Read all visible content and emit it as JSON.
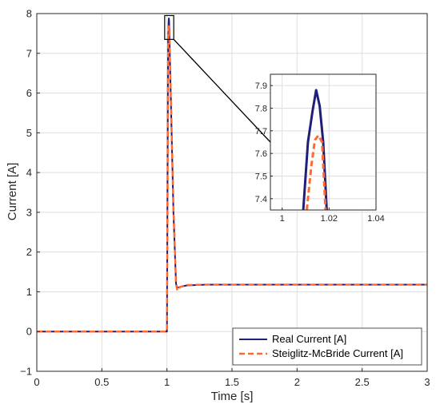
{
  "colors": {
    "real": "#1f1f7a",
    "sm": "#ff6a33",
    "axis": "#262626",
    "grid": "#dedede",
    "zoom_box": "#000000"
  },
  "chart_data": {
    "type": "line",
    "title": "",
    "xlabel": "Time [s]",
    "ylabel": "Current [A]",
    "xlim": [
      0,
      3
    ],
    "ylim": [
      -1,
      8
    ],
    "xticks": [
      0,
      0.5,
      1,
      1.5,
      2,
      2.5,
      3
    ],
    "xtick_labels": [
      "0",
      "0.5",
      "1",
      "1.5",
      "2",
      "2.5",
      "3"
    ],
    "yticks": [
      -1,
      0,
      1,
      2,
      3,
      4,
      5,
      6,
      7,
      8
    ],
    "ytick_labels": [
      "−1",
      "0",
      "1",
      "2",
      "3",
      "4",
      "5",
      "6",
      "7",
      "8"
    ],
    "grid": true,
    "legend_position": "bottom-right",
    "series": [
      {
        "name": "Real Current [A]",
        "line_style": "solid",
        "x": [
          0,
          0.5,
          1.0,
          1.009,
          1.013,
          1.015,
          1.017,
          1.02,
          1.05,
          1.07,
          1.08,
          1.1,
          1.15,
          1.3,
          2.0,
          3.0
        ],
        "y": [
          0,
          0,
          0,
          7.3,
          7.8,
          7.88,
          7.8,
          7.3,
          3.0,
          1.2,
          1.1,
          1.12,
          1.16,
          1.18,
          1.18,
          1.18
        ]
      },
      {
        "name": "Steiglitz-McBride Current [A]",
        "line_style": "dashed",
        "x": [
          0,
          0.5,
          1.0,
          1.01,
          1.013,
          1.015,
          1.018,
          1.02,
          1.05,
          1.07,
          1.08,
          1.1,
          1.15,
          1.3,
          2.0,
          3.0
        ],
        "y": [
          0,
          0,
          0,
          7.3,
          7.6,
          7.68,
          7.66,
          7.3,
          3.1,
          1.2,
          1.03,
          1.12,
          1.17,
          1.18,
          1.18,
          1.18
        ]
      }
    ],
    "inset": {
      "xlim": [
        0.995,
        1.04
      ],
      "ylim": [
        7.35,
        7.95
      ],
      "xticks": [
        1,
        1.02,
        1.04
      ],
      "xtick_labels": [
        "1",
        "1.02",
        "1.04"
      ],
      "yticks": [
        7.4,
        7.5,
        7.6,
        7.7,
        7.8,
        7.9
      ],
      "ytick_labels": [
        "7.4",
        "7.5",
        "7.6",
        "7.7",
        "7.8",
        "7.9"
      ],
      "zoom_region": {
        "x": [
          0.995,
          1.04
        ],
        "y": [
          7.35,
          7.95
        ]
      },
      "series": [
        {
          "name": "Real Current [A]",
          "x": [
            1.009,
            1.011,
            1.013,
            1.0145,
            1.016,
            1.0175,
            1.019
          ],
          "y": [
            7.35,
            7.65,
            7.79,
            7.88,
            7.81,
            7.65,
            7.35
          ]
        },
        {
          "name": "Steiglitz-McBride Current [A]",
          "x": [
            1.0105,
            1.0125,
            1.014,
            1.0155,
            1.017,
            1.0185
          ],
          "y": [
            7.35,
            7.55,
            7.66,
            7.68,
            7.65,
            7.35
          ]
        }
      ]
    }
  }
}
